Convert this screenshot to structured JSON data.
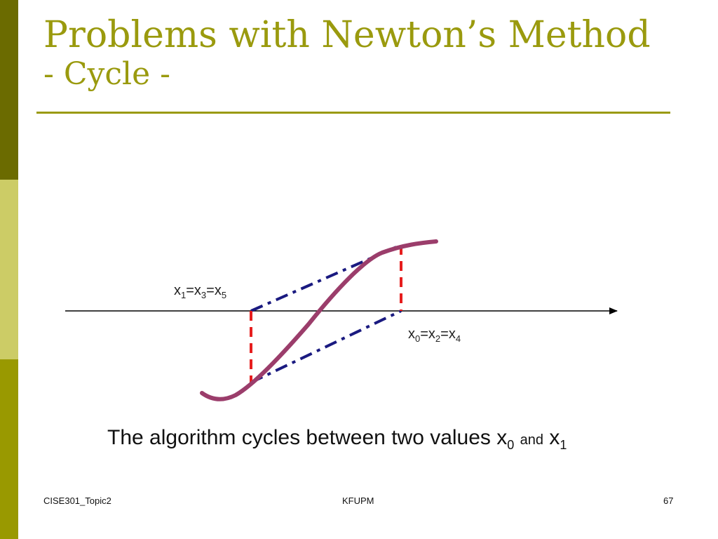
{
  "colors": {
    "title": "#9a9a0e",
    "rule": "#9a9a0e",
    "bar_top": "#6b6b00",
    "bar_mid": "#cccc66",
    "bar_bot": "#999900",
    "curve": "#9b3d6b",
    "tangent": "#1a1a80",
    "vertical": "#e61e1e",
    "axis": "#000000"
  },
  "slide": {
    "title": "Problems with Newton’s Method",
    "subtitle": "- Cycle -"
  },
  "diagram": {
    "label_left": {
      "v1": "x",
      "s1": "1",
      "eq1": "=x",
      "s2": "3",
      "eq2": "=x",
      "s3": "5"
    },
    "label_right": {
      "v1": "x",
      "s1": "0",
      "eq1": "=x",
      "s2": "2",
      "eq2": "=x",
      "s3": "4"
    }
  },
  "caption": {
    "text": "The algorithm cycles between two values x",
    "sub0": "0",
    "and": "and",
    "x1": "x",
    "sub1": "1"
  },
  "footer": {
    "left": "CISE301_Topic2",
    "center": "KFUPM",
    "page": "67"
  }
}
